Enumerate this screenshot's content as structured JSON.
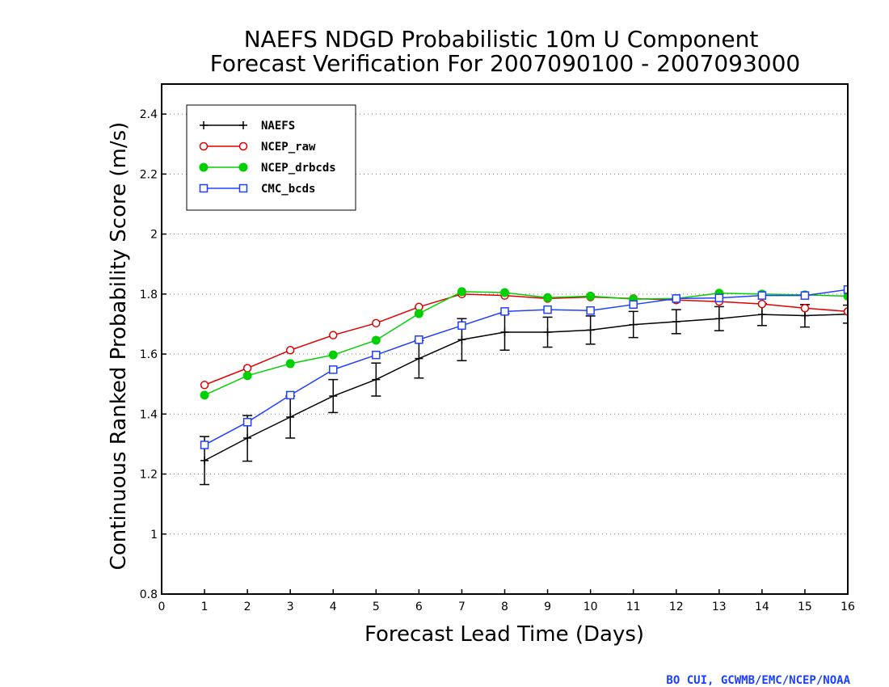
{
  "chart_data": {
    "type": "line",
    "title_line1": "NAEFS NDGD Probabilistic 10m U Component",
    "title_line2": "Forecast Verification For 2007090100 - 2007093000",
    "xlabel": "Forecast Lead Time (Days)",
    "ylabel": "Continuous Ranked Probability Score (m/s)",
    "xlim": [
      0,
      16
    ],
    "ylim": [
      0.8,
      2.5
    ],
    "x_ticks": [
      0,
      1,
      2,
      3,
      4,
      5,
      6,
      7,
      8,
      9,
      10,
      11,
      12,
      13,
      14,
      15,
      16
    ],
    "y_ticks": [
      0.8,
      1,
      1.2,
      1.4,
      1.6,
      1.8,
      2,
      2.2,
      2.4
    ],
    "y_tick_labels": [
      "0.8",
      "1",
      "1.2",
      "1.4",
      "1.6",
      "1.8",
      "2",
      "2.2",
      "2.4"
    ],
    "grid": "horizontal dotted",
    "legend_position": "top-left",
    "x": [
      1,
      2,
      3,
      4,
      5,
      6,
      7,
      8,
      9,
      10,
      11,
      12,
      13,
      14,
      15,
      16
    ],
    "series": [
      {
        "name": "NAEFS",
        "color": "#000000",
        "marker": "plus",
        "values": [
          1.245,
          1.32,
          1.39,
          1.46,
          1.515,
          1.585,
          1.648,
          1.673,
          1.673,
          1.68,
          1.698,
          1.708,
          1.718,
          1.732,
          1.728,
          1.733
        ],
        "error_low": [
          1.165,
          1.243,
          1.32,
          1.405,
          1.46,
          1.52,
          1.578,
          1.613,
          1.623,
          1.633,
          1.655,
          1.668,
          1.678,
          1.695,
          1.69,
          1.703
        ],
        "error_high": [
          1.325,
          1.395,
          1.46,
          1.515,
          1.57,
          1.645,
          1.718,
          1.735,
          1.723,
          1.727,
          1.742,
          1.748,
          1.758,
          1.768,
          1.765,
          1.763
        ]
      },
      {
        "name": "NCEP_raw",
        "color": "#e00000",
        "marker": "circle-open",
        "values": [
          1.497,
          1.553,
          1.613,
          1.663,
          1.703,
          1.757,
          1.8,
          1.795,
          1.785,
          1.79,
          1.785,
          1.78,
          1.775,
          1.767,
          1.753,
          1.742
        ]
      },
      {
        "name": "NCEP_drbcds",
        "color": "#00d000",
        "marker": "circle-filled",
        "values": [
          1.463,
          1.528,
          1.568,
          1.597,
          1.646,
          1.735,
          1.808,
          1.805,
          1.788,
          1.793,
          1.783,
          1.785,
          1.803,
          1.8,
          1.797,
          1.793
        ]
      },
      {
        "name": "CMC_bcds",
        "color": "#2040ff",
        "marker": "square-open",
        "values": [
          1.297,
          1.373,
          1.463,
          1.548,
          1.597,
          1.648,
          1.695,
          1.742,
          1.748,
          1.745,
          1.765,
          1.785,
          1.787,
          1.795,
          1.795,
          1.815
        ]
      }
    ]
  },
  "credit": {
    "text": "BO CUI, GCWMB/EMC/NCEP/NOAA",
    "color": "#1a3fff"
  }
}
